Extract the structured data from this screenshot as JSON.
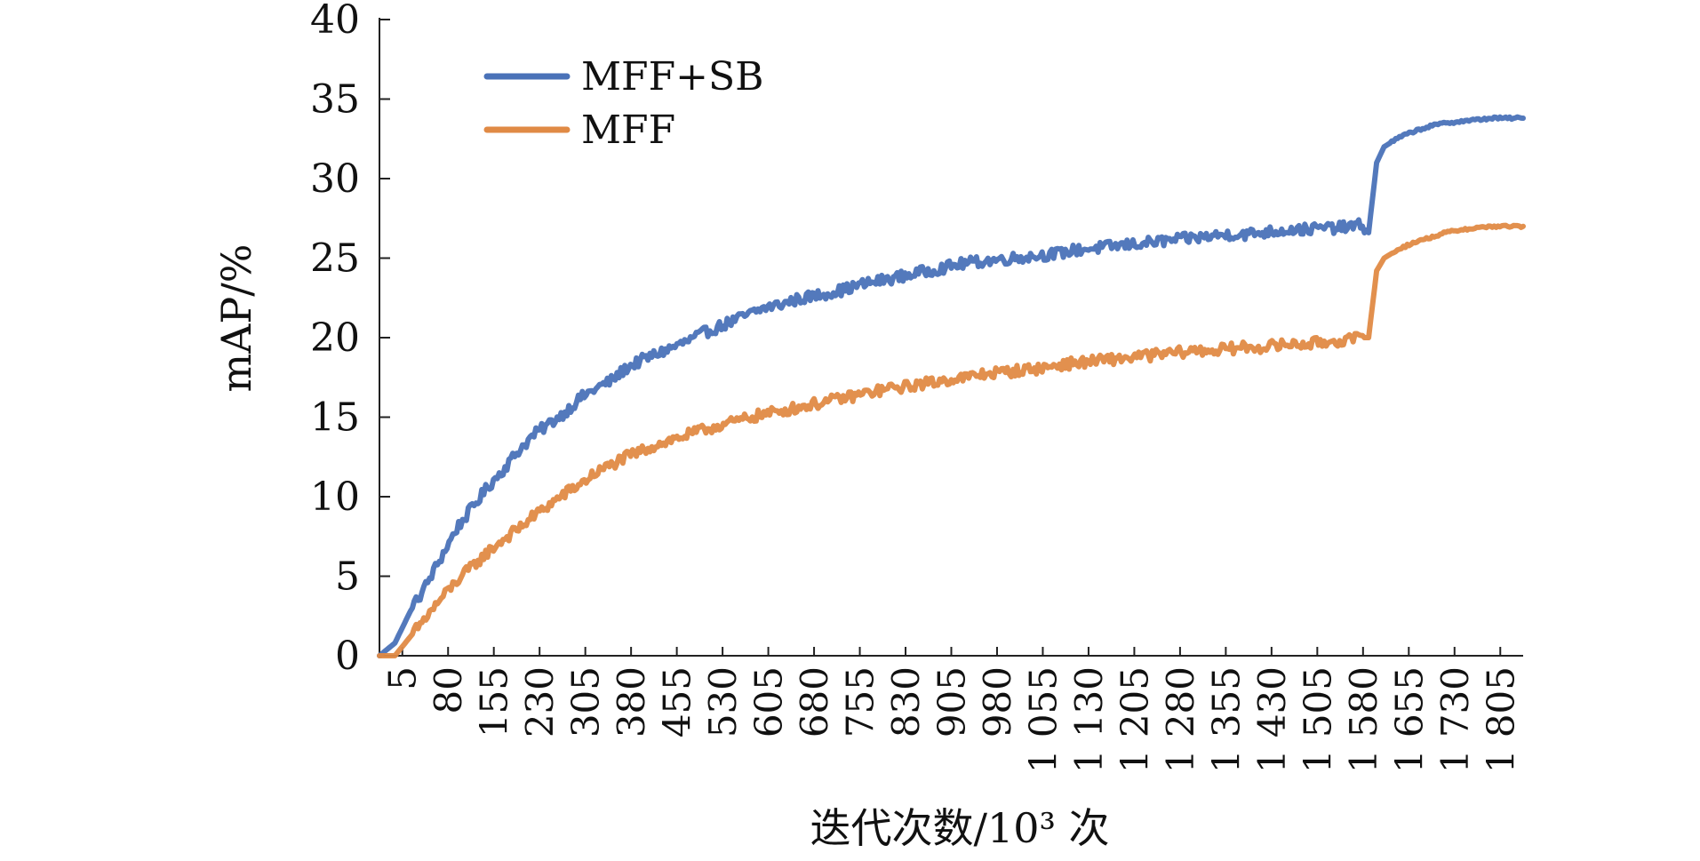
{
  "chart_data": {
    "type": "line",
    "title": "",
    "xlabel": "迭代次数/10³ 次",
    "ylabel": "mAP/%",
    "ylim": [
      0,
      40
    ],
    "xlim": [
      5,
      1855
    ],
    "y_ticks": [
      0,
      5,
      10,
      15,
      20,
      25,
      30,
      35,
      40
    ],
    "x_tick_labels": [
      "5",
      "80",
      "155",
      "230",
      "305",
      "380",
      "455",
      "530",
      "605",
      "680",
      "755",
      "830",
      "905",
      "980",
      "1 055",
      "1 130",
      "1 205",
      "1 280",
      "1 355",
      "1 430",
      "1 505",
      "1 580",
      "1 655",
      "1 730",
      "1 805"
    ],
    "legend_position": "top-left",
    "grid": false,
    "series": [
      {
        "name": "MFF+SB",
        "color": "#4a72b8",
        "points": [
          [
            5,
            0
          ],
          [
            30,
            0.8
          ],
          [
            55,
            2.8
          ],
          [
            80,
            4.4
          ],
          [
            105,
            6.2
          ],
          [
            130,
            8
          ],
          [
            155,
            9.3
          ],
          [
            180,
            10.6
          ],
          [
            205,
            11.7
          ],
          [
            230,
            12.9
          ],
          [
            255,
            13.9
          ],
          [
            280,
            14.6
          ],
          [
            305,
            15.3
          ],
          [
            330,
            16.2
          ],
          [
            355,
            16.8
          ],
          [
            380,
            17.3
          ],
          [
            405,
            18.1
          ],
          [
            430,
            18.6
          ],
          [
            455,
            19
          ],
          [
            480,
            19.4
          ],
          [
            505,
            19.8
          ],
          [
            530,
            20.3
          ],
          [
            555,
            20.7
          ],
          [
            580,
            21.1
          ],
          [
            605,
            21.5
          ],
          [
            630,
            21.9
          ],
          [
            655,
            22.1
          ],
          [
            680,
            22.4
          ],
          [
            705,
            22.6
          ],
          [
            730,
            22.8
          ],
          [
            755,
            23
          ],
          [
            780,
            23.3
          ],
          [
            805,
            23.5
          ],
          [
            830,
            23.7
          ],
          [
            855,
            23.9
          ],
          [
            880,
            24.1
          ],
          [
            905,
            24.3
          ],
          [
            930,
            24.5
          ],
          [
            955,
            24.7
          ],
          [
            980,
            24.8
          ],
          [
            1005,
            24.9
          ],
          [
            1030,
            25
          ],
          [
            1055,
            25.1
          ],
          [
            1080,
            25.2
          ],
          [
            1105,
            25.3
          ],
          [
            1130,
            25.5
          ],
          [
            1155,
            25.6
          ],
          [
            1180,
            25.7
          ],
          [
            1205,
            25.8
          ],
          [
            1230,
            25.9
          ],
          [
            1255,
            26
          ],
          [
            1280,
            26.1
          ],
          [
            1305,
            26.2
          ],
          [
            1330,
            26.3
          ],
          [
            1355,
            26.4
          ],
          [
            1380,
            26.5
          ],
          [
            1405,
            26.5
          ],
          [
            1430,
            26.6
          ],
          [
            1455,
            26.7
          ],
          [
            1480,
            26.8
          ],
          [
            1505,
            26.8
          ],
          [
            1530,
            26.9
          ],
          [
            1555,
            26.9
          ],
          [
            1580,
            27
          ],
          [
            1595,
            27.1
          ],
          [
            1605,
            26.6
          ],
          [
            1618,
            31
          ],
          [
            1630,
            32
          ],
          [
            1655,
            32.6
          ],
          [
            1680,
            33
          ],
          [
            1705,
            33.3
          ],
          [
            1730,
            33.5
          ],
          [
            1755,
            33.6
          ],
          [
            1780,
            33.7
          ],
          [
            1805,
            33.8
          ],
          [
            1830,
            33.8
          ],
          [
            1855,
            33.8
          ]
        ]
      },
      {
        "name": "MFF",
        "color": "#e08a45",
        "points": [
          [
            5,
            0
          ],
          [
            30,
            0
          ],
          [
            55,
            1.2
          ],
          [
            80,
            2.4
          ],
          [
            105,
            3.6
          ],
          [
            130,
            4.7
          ],
          [
            155,
            5.6
          ],
          [
            180,
            6.5
          ],
          [
            205,
            7.3
          ],
          [
            230,
            8
          ],
          [
            255,
            8.8
          ],
          [
            280,
            9.5
          ],
          [
            305,
            10.2
          ],
          [
            330,
            10.8
          ],
          [
            355,
            11.5
          ],
          [
            380,
            12
          ],
          [
            405,
            12.5
          ],
          [
            430,
            12.9
          ],
          [
            455,
            13.3
          ],
          [
            480,
            13.6
          ],
          [
            505,
            13.9
          ],
          [
            530,
            14.2
          ],
          [
            555,
            14.5
          ],
          [
            580,
            14.7
          ],
          [
            605,
            15
          ],
          [
            630,
            15.2
          ],
          [
            655,
            15.4
          ],
          [
            680,
            15.6
          ],
          [
            705,
            15.8
          ],
          [
            730,
            16
          ],
          [
            755,
            16.2
          ],
          [
            780,
            16.4
          ],
          [
            805,
            16.6
          ],
          [
            830,
            16.8
          ],
          [
            855,
            16.9
          ],
          [
            880,
            17.1
          ],
          [
            905,
            17.2
          ],
          [
            930,
            17.4
          ],
          [
            955,
            17.5
          ],
          [
            980,
            17.7
          ],
          [
            1005,
            17.8
          ],
          [
            1030,
            17.9
          ],
          [
            1055,
            18
          ],
          [
            1080,
            18.1
          ],
          [
            1105,
            18.3
          ],
          [
            1130,
            18.4
          ],
          [
            1155,
            18.5
          ],
          [
            1180,
            18.6
          ],
          [
            1205,
            18.7
          ],
          [
            1230,
            18.8
          ],
          [
            1255,
            18.9
          ],
          [
            1280,
            19
          ],
          [
            1305,
            19.1
          ],
          [
            1330,
            19.2
          ],
          [
            1355,
            19.2
          ],
          [
            1380,
            19.3
          ],
          [
            1405,
            19.4
          ],
          [
            1430,
            19.4
          ],
          [
            1455,
            19.5
          ],
          [
            1480,
            19.6
          ],
          [
            1505,
            19.6
          ],
          [
            1530,
            19.7
          ],
          [
            1555,
            19.8
          ],
          [
            1580,
            19.9
          ],
          [
            1595,
            20
          ],
          [
            1605,
            20
          ],
          [
            1618,
            24.2
          ],
          [
            1630,
            25
          ],
          [
            1655,
            25.6
          ],
          [
            1680,
            26
          ],
          [
            1705,
            26.3
          ],
          [
            1730,
            26.6
          ],
          [
            1755,
            26.8
          ],
          [
            1780,
            26.9
          ],
          [
            1805,
            27
          ],
          [
            1830,
            27
          ],
          [
            1855,
            27
          ]
        ]
      }
    ]
  }
}
